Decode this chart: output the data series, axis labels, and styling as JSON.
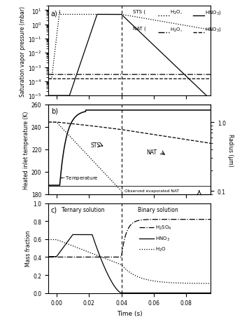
{
  "xlabel": "Time (s)",
  "panel_a_ylabel": "Saturation vapor pressure (mbar)",
  "panel_b_ylabel_left": "Heated inlet temperature (K)",
  "panel_b_ylabel_right": "Radius (μm)",
  "panel_c_ylabel": "Mass fraction",
  "xlim": [
    -0.005,
    0.095
  ],
  "xticks": [
    0.0,
    0.02,
    0.04,
    0.06,
    0.08
  ],
  "panel_a_ylim_log": [
    1e-05,
    20.0
  ],
  "panel_b_ylim": [
    180,
    260
  ],
  "panel_b_yticks": [
    180,
    200,
    220,
    240,
    260
  ],
  "panel_c_ylim": [
    0.0,
    1.0
  ],
  "panel_c_yticks": [
    0.0,
    0.2,
    0.4,
    0.6,
    0.8,
    1.0
  ],
  "t_split": 0.04,
  "background_color": "#ffffff"
}
